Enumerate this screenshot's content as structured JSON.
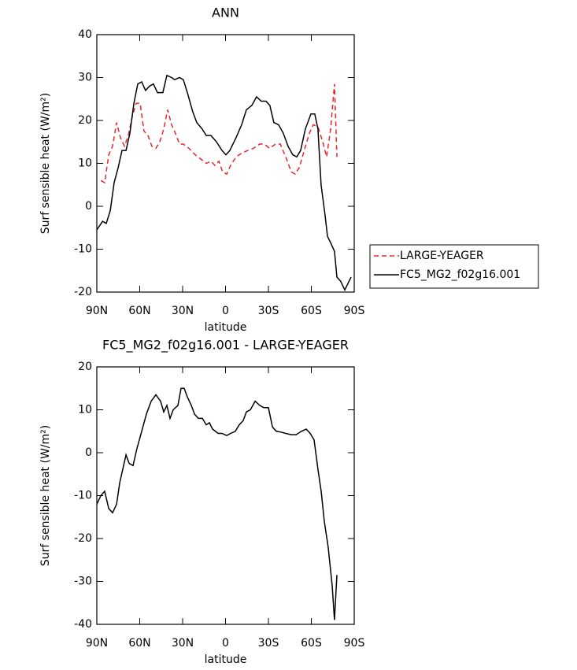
{
  "chart_data": [
    {
      "type": "line",
      "title": "ANN",
      "x_label": "latitude",
      "y_label": "Surf sensible heat (W/m²)",
      "xlim": [
        90,
        -90
      ],
      "xticks": [
        {
          "value": 90,
          "label": "90N"
        },
        {
          "value": 60,
          "label": "60N"
        },
        {
          "value": 30,
          "label": "30N"
        },
        0,
        {
          "value": -30,
          "label": "30S"
        },
        {
          "value": -60,
          "label": "60S"
        },
        {
          "value": -90,
          "label": "90S"
        }
      ],
      "ylim": [
        -20,
        40
      ],
      "yticks": [
        -20,
        -10,
        0,
        10,
        20,
        30,
        40
      ],
      "legend": "outside-right",
      "series": [
        {
          "name": "LARGE-YEAGER",
          "color": "#e8262a",
          "linestyle": "dashed",
          "x": [
            87.2,
            84.5,
            81.7,
            79,
            76.2,
            73.5,
            70.7,
            68,
            65.2,
            62.5,
            59.7,
            57,
            54.2,
            51.5,
            48.7,
            46,
            43.2,
            40.5,
            37.7,
            35,
            32.2,
            29.5,
            25.6,
            21.2,
            17.3,
            13.5,
            10.2,
            7.4,
            4.7,
            2,
            -0.8,
            -3.5,
            -7.4,
            -11.8,
            -15.7,
            -19.5,
            -23.9,
            -27.3,
            -30.6,
            -35,
            -38.3,
            -42.1,
            -46,
            -48.7,
            -51.5,
            -55.9,
            -58.6,
            -61.4,
            -64.7,
            -68,
            -70.7,
            -73.5,
            -76.2,
            -77.9
          ],
          "values": [
            6,
            5.5,
            12,
            14,
            19.5,
            16,
            14,
            16.5,
            21,
            24,
            24,
            17.5,
            16.5,
            14,
            13.5,
            15,
            18,
            22.5,
            19,
            17,
            14.5,
            14.5,
            13.5,
            12,
            11,
            10,
            10.5,
            9.5,
            10.5,
            8,
            7.5,
            9.5,
            11.5,
            12.5,
            13,
            13.5,
            14.5,
            14.5,
            13.5,
            14.5,
            14.5,
            11.5,
            8,
            7.5,
            9,
            14,
            17,
            19,
            18.5,
            15,
            11.5,
            18,
            28.5,
            11.5
          ]
        },
        {
          "name": "FC5_MG2_f02g16.001",
          "color": "#000000",
          "linestyle": "solid",
          "x": [
            90,
            86,
            83.4,
            80.6,
            77.9,
            75.1,
            72.4,
            69.6,
            66.9,
            64.1,
            61.4,
            58.6,
            55.9,
            53.1,
            50.4,
            47.6,
            43.8,
            41,
            37.7,
            35.5,
            32.2,
            29.5,
            26.7,
            22.9,
            20.1,
            16.3,
            13.5,
            10.2,
            6.3,
            2.5,
            -0.3,
            -3,
            -7.4,
            -11.3,
            -14.6,
            -18.4,
            -21.7,
            -25,
            -28.3,
            -31,
            -33.8,
            -37.1,
            -40.4,
            -43.7,
            -47,
            -49.8,
            -52.5,
            -55.8,
            -59.7,
            -62.4,
            -64.6,
            -66.8,
            -69.6,
            -71.3,
            -73.5,
            -76.2,
            -77.9,
            -80.6,
            -83.4,
            -87.8
          ],
          "values": [
            -5.5,
            -3.5,
            -4,
            -1,
            5.5,
            9,
            13,
            13,
            17,
            24,
            28.5,
            29,
            27,
            28,
            28.5,
            26.5,
            26.5,
            30.5,
            30,
            29.5,
            30,
            29.5,
            26.5,
            22,
            19.5,
            18,
            16.5,
            16.5,
            15,
            13,
            12,
            13,
            16,
            19,
            22.5,
            23.5,
            25.5,
            24.5,
            24.5,
            23.5,
            19.5,
            19,
            17,
            14,
            12,
            11.5,
            13,
            18,
            21.5,
            21.5,
            18,
            5,
            -2,
            -7,
            -8.5,
            -10.5,
            -16.5,
            -17.5,
            -19.5,
            -16.5
          ]
        }
      ]
    },
    {
      "type": "line",
      "title": "FC5_MG2_f02g16.001 - LARGE-YEAGER",
      "x_label": "latitude",
      "y_label": "Surf sensible heat (W/m²)",
      "xlim": [
        90,
        -90
      ],
      "xticks": [
        {
          "value": 90,
          "label": "90N"
        },
        {
          "value": 60,
          "label": "60N"
        },
        {
          "value": 30,
          "label": "30N"
        },
        0,
        {
          "value": -30,
          "label": "30S"
        },
        {
          "value": -60,
          "label": "60S"
        },
        {
          "value": -90,
          "label": "90S"
        }
      ],
      "ylim": [
        -40,
        20
      ],
      "yticks": [
        -40,
        -30,
        -20,
        -10,
        0,
        10,
        20
      ],
      "series": [
        {
          "color": "#000000",
          "linestyle": "solid",
          "x": [
            90,
            87.2,
            84.5,
            81.7,
            79,
            76.2,
            74,
            71.3,
            69.6,
            67.4,
            64.7,
            61.9,
            58.6,
            55.3,
            52,
            48.7,
            45.4,
            43.2,
            41,
            38.8,
            36.6,
            33.3,
            31.1,
            28.9,
            26.7,
            23.9,
            21.7,
            19,
            16.2,
            13.5,
            11.3,
            9.1,
            5.2,
            2.5,
            -0.8,
            -3.5,
            -6.8,
            -9.6,
            -12.4,
            -14.6,
            -17.4,
            -20.7,
            -24,
            -26.7,
            -30,
            -32.8,
            -35.5,
            -38.8,
            -42.1,
            -46,
            -49.3,
            -53.1,
            -56.4,
            -59.2,
            -61.9,
            -64.7,
            -66.9,
            -69.1,
            -71.8,
            -74.6,
            -76.2,
            -77.9
          ],
          "values": [
            -12,
            -10,
            -9,
            -13,
            -14,
            -12,
            -7,
            -3,
            -0.5,
            -2.5,
            -3,
            1,
            5,
            9,
            12,
            13.5,
            12,
            9.5,
            11,
            8,
            10,
            11,
            15,
            15,
            13,
            11,
            9,
            8,
            8,
            6.5,
            7,
            5.5,
            4.5,
            4.5,
            4,
            4.5,
            5,
            6.5,
            7.5,
            9.5,
            10,
            12,
            11,
            10.5,
            10.5,
            6,
            5,
            4.8,
            4.5,
            4.2,
            4.2,
            5,
            5.5,
            4.5,
            3,
            -4,
            -9,
            -16,
            -22,
            -31,
            -39,
            -28.5
          ]
        }
      ]
    }
  ]
}
